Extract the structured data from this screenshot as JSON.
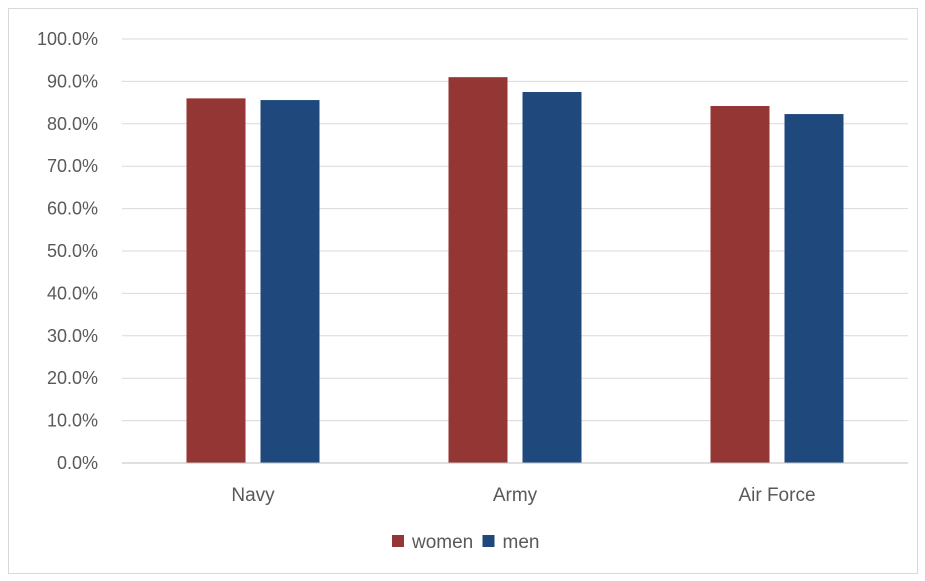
{
  "chart_data": {
    "type": "bar",
    "categories": [
      "Navy",
      "Army",
      "Air Force"
    ],
    "series": [
      {
        "name": "women",
        "values": [
          86.0,
          91.0,
          84.2
        ],
        "color": "#943634"
      },
      {
        "name": "men",
        "values": [
          85.6,
          87.5,
          82.3
        ],
        "color": "#1F497D"
      }
    ],
    "ylim": [
      0,
      100
    ],
    "yticks": [
      0,
      10,
      20,
      30,
      40,
      50,
      60,
      70,
      80,
      90,
      100
    ],
    "ytick_labels": [
      "0.0%",
      "10.0%",
      "20.0%",
      "30.0%",
      "40.0%",
      "50.0%",
      "60.0%",
      "70.0%",
      "80.0%",
      "90.0%",
      "100.0%"
    ],
    "grid": true,
    "legend_position": "bottom"
  }
}
